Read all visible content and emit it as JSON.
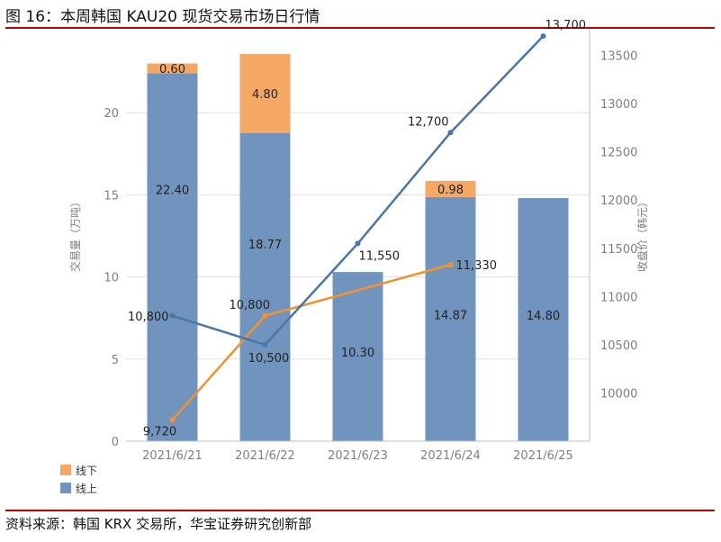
{
  "figure": {
    "title": "图 16：本周韩国 KAU20 现货交易市场日行情",
    "source": "资料来源：韩国 KRX 交易所，华宝证券研究创新部"
  },
  "colors": {
    "online": "#7094bd",
    "offline": "#f4a864",
    "price_line": "#4a76a8",
    "price_line2": "#f0932e",
    "rule": "#c00000"
  },
  "chart_data": {
    "type": "bar",
    "categories": [
      "2021/6/21",
      "2021/6/22",
      "2021/6/23",
      "2021/6/24",
      "2021/6/25"
    ],
    "series": [
      {
        "name": "线上",
        "values": [
          22.4,
          18.77,
          10.3,
          14.87,
          14.8
        ],
        "labels": [
          "22.40",
          "18.77",
          "10.30",
          "14.87",
          "14.80"
        ]
      },
      {
        "name": "线下",
        "values": [
          0.6,
          4.8,
          null,
          0.98,
          null
        ],
        "labels": [
          "0.60",
          "4.80",
          "",
          "0.98",
          ""
        ]
      }
    ],
    "lines": [
      {
        "values": [
          10800,
          10500,
          11550,
          12700,
          13700
        ],
        "labels": [
          "10,800",
          "10,500",
          "11,550",
          "12,700",
          "13,700"
        ]
      },
      {
        "values": [
          9720,
          10800,
          null,
          11330,
          null
        ],
        "labels": [
          "9,720",
          "10,800",
          "",
          "11,330",
          ""
        ]
      }
    ],
    "ylabel": "交易量（万吨）",
    "y2label": "收盘价（韩元）",
    "yticks": [
      "0",
      "5",
      "10",
      "15",
      "20"
    ],
    "y2ticks": [
      "10000",
      "10500",
      "11000",
      "11500",
      "12000",
      "12500",
      "13000",
      "13500"
    ],
    "ylim": [
      0,
      25
    ],
    "y2lim": [
      9500,
      13800
    ],
    "stacked": true,
    "legend": "bottom-left"
  }
}
